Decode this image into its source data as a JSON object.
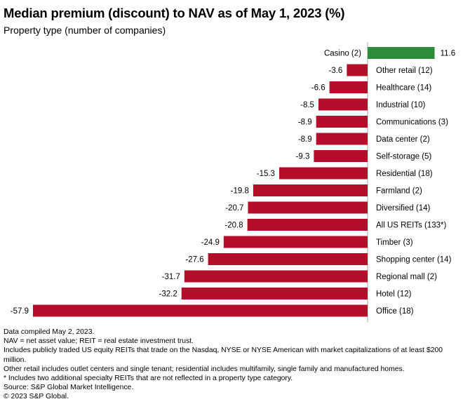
{
  "header": {
    "title": "Median premium (discount) to NAV as of May 1, 2023 (%)",
    "subtitle": "Property type (number of companies)"
  },
  "chart_data": {
    "type": "bar",
    "orientation": "horizontal",
    "title": "Median premium (discount) to NAV as of May 1, 2023 (%)",
    "subtitle": "Property type (number of companies)",
    "categories": [
      "Casino (2)",
      "Other retail (12)",
      "Healthcare (14)",
      "Industrial (10)",
      "Communications (3)",
      "Data center (2)",
      "Self-storage (5)",
      "Residential (18)",
      "Farmland (2)",
      "Diversified (14)",
      "All US REITs (133*)",
      "Timber (3)",
      "Shopping center (14)",
      "Regional mall (2)",
      "Hotel (12)",
      "Office (18)"
    ],
    "values": [
      11.6,
      -3.6,
      -6.6,
      -8.5,
      -8.9,
      -8.9,
      -9.3,
      -15.3,
      -19.8,
      -20.7,
      -20.8,
      -24.9,
      -27.6,
      -31.7,
      -32.2,
      -57.9
    ],
    "labels": [
      "11.6",
      "-3.6",
      "-6.6",
      "-8.5",
      "-8.9",
      "-8.9",
      "-9.3",
      "-15.3",
      "-19.8",
      "-20.7",
      "-20.8",
      "-24.9",
      "-27.6",
      "-31.7",
      "-32.2",
      "-57.9"
    ],
    "colors": {
      "positive": "#2e8b3a",
      "negative": "#b50e2a",
      "axis": "#aaaaaa"
    },
    "xlim": [
      -57.9,
      11.6
    ],
    "grid": false,
    "legend": "none"
  },
  "notes": {
    "compiled": "Data compiled May 2, 2023.",
    "definitions": "NAV = net asset value; REIT = real estate investment trust.",
    "includes": "Includes publicly traded US equity REITs that trade on the Nasdaq, NYSE or NYSE American with market capitalizations of at least $200 million.",
    "other_retail": "Other retail includes outlet centers and single tenant; residential includes multifamily, single family and manufactured homes.",
    "asterisk": "* Includes two additional specialty REITs that are not reflected in a property type category.",
    "source": "Source: S&P Global Market Intelligence.",
    "copyright": "© 2023 S&P Global."
  }
}
